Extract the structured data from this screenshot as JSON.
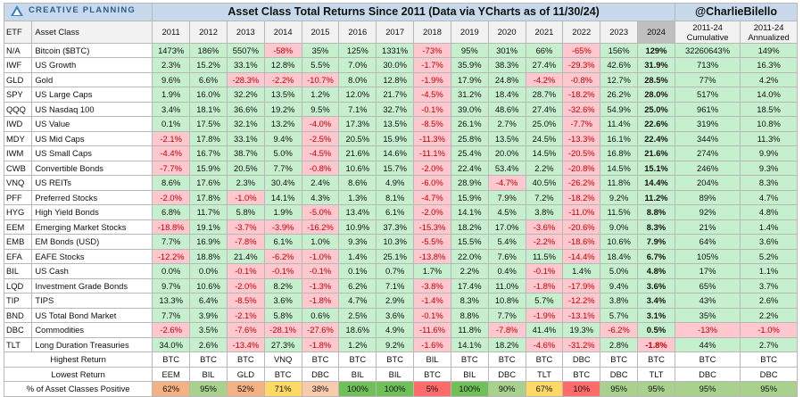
{
  "brand": {
    "logo_text": "CREATIVE PLANNING",
    "handle": "@CharlieBilello"
  },
  "title": "Asset Class Total Returns Since 2011 (Data via YCharts as of 11/30/24)",
  "colors": {
    "positive": "#c6efce",
    "negative": "#ffc7ce",
    "header": "#c9d9ec",
    "neg_text": "#c00000"
  },
  "chart_data": {
    "type": "table",
    "title": "Asset Class Total Returns Since 2011 (Data via YCharts as of 11/30/24)",
    "columns": [
      "ETF",
      "Asset Class",
      "2011",
      "2012",
      "2013",
      "2014",
      "2015",
      "2016",
      "2017",
      "2018",
      "2019",
      "2020",
      "2021",
      "2022",
      "2023",
      "2024",
      "2011-24 Cumulative",
      "2011-24 Annualized"
    ],
    "rows": [
      {
        "etf": "N/A",
        "name": "Bitcoin ($BTC)",
        "values": [
          "1473%",
          "186%",
          "5507%",
          "-58%",
          "35%",
          "125%",
          "1331%",
          "-73%",
          "95%",
          "301%",
          "66%",
          "-65%",
          "156%",
          "129%",
          "32260643%",
          "149%"
        ]
      },
      {
        "etf": "IWF",
        "name": "US Growth",
        "values": [
          "2.3%",
          "15.2%",
          "33.1%",
          "12.8%",
          "5.5%",
          "7.0%",
          "30.0%",
          "-1.7%",
          "35.9%",
          "38.3%",
          "27.4%",
          "-29.3%",
          "42.6%",
          "31.9%",
          "713%",
          "16.3%"
        ]
      },
      {
        "etf": "GLD",
        "name": "Gold",
        "values": [
          "9.6%",
          "6.6%",
          "-28.3%",
          "-2.2%",
          "-10.7%",
          "8.0%",
          "12.8%",
          "-1.9%",
          "17.9%",
          "24.8%",
          "-4.2%",
          "-0.8%",
          "12.7%",
          "28.5%",
          "77%",
          "4.2%"
        ]
      },
      {
        "etf": "SPY",
        "name": "US Large Caps",
        "values": [
          "1.9%",
          "16.0%",
          "32.2%",
          "13.5%",
          "1.2%",
          "12.0%",
          "21.7%",
          "-4.5%",
          "31.2%",
          "18.4%",
          "28.7%",
          "-18.2%",
          "26.2%",
          "28.0%",
          "517%",
          "14.0%"
        ]
      },
      {
        "etf": "QQQ",
        "name": "US Nasdaq 100",
        "values": [
          "3.4%",
          "18.1%",
          "36.6%",
          "19.2%",
          "9.5%",
          "7.1%",
          "32.7%",
          "-0.1%",
          "39.0%",
          "48.6%",
          "27.4%",
          "-32.6%",
          "54.9%",
          "25.0%",
          "961%",
          "18.5%"
        ]
      },
      {
        "etf": "IWD",
        "name": "US Value",
        "values": [
          "0.1%",
          "17.5%",
          "32.1%",
          "13.2%",
          "-4.0%",
          "17.3%",
          "13.5%",
          "-8.5%",
          "26.1%",
          "2.7%",
          "25.0%",
          "-7.7%",
          "11.4%",
          "22.6%",
          "319%",
          "10.8%"
        ]
      },
      {
        "etf": "MDY",
        "name": "US Mid Caps",
        "values": [
          "-2.1%",
          "17.8%",
          "33.1%",
          "9.4%",
          "-2.5%",
          "20.5%",
          "15.9%",
          "-11.3%",
          "25.8%",
          "13.5%",
          "24.5%",
          "-13.3%",
          "16.1%",
          "22.4%",
          "344%",
          "11.3%"
        ]
      },
      {
        "etf": "IWM",
        "name": "US Small Caps",
        "values": [
          "-4.4%",
          "16.7%",
          "38.7%",
          "5.0%",
          "-4.5%",
          "21.6%",
          "14.6%",
          "-11.1%",
          "25.4%",
          "20.0%",
          "14.5%",
          "-20.5%",
          "16.8%",
          "21.6%",
          "274%",
          "9.9%"
        ]
      },
      {
        "etf": "CWB",
        "name": "Convertible Bonds",
        "values": [
          "-7.7%",
          "15.9%",
          "20.5%",
          "7.7%",
          "-0.8%",
          "10.6%",
          "15.7%",
          "-2.0%",
          "22.4%",
          "53.4%",
          "2.2%",
          "-20.8%",
          "14.5%",
          "15.1%",
          "246%",
          "9.3%"
        ]
      },
      {
        "etf": "VNQ",
        "name": "US REITs",
        "values": [
          "8.6%",
          "17.6%",
          "2.3%",
          "30.4%",
          "2.4%",
          "8.6%",
          "4.9%",
          "-6.0%",
          "28.9%",
          "-4.7%",
          "40.5%",
          "-26.2%",
          "11.8%",
          "14.4%",
          "204%",
          "8.3%"
        ]
      },
      {
        "etf": "PFF",
        "name": "Preferred Stocks",
        "values": [
          "-2.0%",
          "17.8%",
          "-1.0%",
          "14.1%",
          "4.3%",
          "1.3%",
          "8.1%",
          "-4.7%",
          "15.9%",
          "7.9%",
          "7.2%",
          "-18.2%",
          "9.2%",
          "11.2%",
          "89%",
          "4.7%"
        ]
      },
      {
        "etf": "HYG",
        "name": "High Yield Bonds",
        "values": [
          "6.8%",
          "11.7%",
          "5.8%",
          "1.9%",
          "-5.0%",
          "13.4%",
          "6.1%",
          "-2.0%",
          "14.1%",
          "4.5%",
          "3.8%",
          "-11.0%",
          "11.5%",
          "8.8%",
          "92%",
          "4.8%"
        ]
      },
      {
        "etf": "EEM",
        "name": "Emerging Market Stocks",
        "values": [
          "-18.8%",
          "19.1%",
          "-3.7%",
          "-3.9%",
          "-16.2%",
          "10.9%",
          "37.3%",
          "-15.3%",
          "18.2%",
          "17.0%",
          "-3.6%",
          "-20.6%",
          "9.0%",
          "8.3%",
          "21%",
          "1.4%"
        ]
      },
      {
        "etf": "EMB",
        "name": "EM Bonds (USD)",
        "values": [
          "7.7%",
          "16.9%",
          "-7.8%",
          "6.1%",
          "1.0%",
          "9.3%",
          "10.3%",
          "-5.5%",
          "15.5%",
          "5.4%",
          "-2.2%",
          "-18.6%",
          "10.6%",
          "7.9%",
          "64%",
          "3.6%"
        ]
      },
      {
        "etf": "EFA",
        "name": "EAFE Stocks",
        "values": [
          "-12.2%",
          "18.8%",
          "21.4%",
          "-6.2%",
          "-1.0%",
          "1.4%",
          "25.1%",
          "-13.8%",
          "22.0%",
          "7.6%",
          "11.5%",
          "-14.4%",
          "18.4%",
          "6.7%",
          "105%",
          "5.2%"
        ]
      },
      {
        "etf": "BIL",
        "name": "US Cash",
        "values": [
          "0.0%",
          "0.0%",
          "-0.1%",
          "-0.1%",
          "-0.1%",
          "0.1%",
          "0.7%",
          "1.7%",
          "2.2%",
          "0.4%",
          "-0.1%",
          "1.4%",
          "5.0%",
          "4.8%",
          "17%",
          "1.1%"
        ]
      },
      {
        "etf": "LQD",
        "name": "Investment Grade Bonds",
        "values": [
          "9.7%",
          "10.6%",
          "-2.0%",
          "8.2%",
          "-1.3%",
          "6.2%",
          "7.1%",
          "-3.8%",
          "17.4%",
          "11.0%",
          "-1.8%",
          "-17.9%",
          "9.4%",
          "3.6%",
          "65%",
          "3.7%"
        ]
      },
      {
        "etf": "TIP",
        "name": "TIPS",
        "values": [
          "13.3%",
          "6.4%",
          "-8.5%",
          "3.6%",
          "-1.8%",
          "4.7%",
          "2.9%",
          "-1.4%",
          "8.3%",
          "10.8%",
          "5.7%",
          "-12.2%",
          "3.8%",
          "3.4%",
          "43%",
          "2.6%"
        ]
      },
      {
        "etf": "BND",
        "name": "US Total Bond Market",
        "values": [
          "7.7%",
          "3.9%",
          "-2.1%",
          "5.8%",
          "0.6%",
          "2.5%",
          "3.6%",
          "-0.1%",
          "8.8%",
          "7.7%",
          "-1.9%",
          "-13.1%",
          "5.7%",
          "3.1%",
          "35%",
          "2.2%"
        ]
      },
      {
        "etf": "DBC",
        "name": "Commodities",
        "values": [
          "-2.6%",
          "3.5%",
          "-7.6%",
          "-28.1%",
          "-27.6%",
          "18.6%",
          "4.9%",
          "-11.6%",
          "11.8%",
          "-7.8%",
          "41.4%",
          "19.3%",
          "-6.2%",
          "0.5%",
          "-13%",
          "-1.0%"
        ]
      },
      {
        "etf": "TLT",
        "name": "Long Duration Treasuries",
        "values": [
          "34.0%",
          "2.6%",
          "-13.4%",
          "27.3%",
          "-1.8%",
          "1.2%",
          "9.2%",
          "-1.6%",
          "14.1%",
          "18.2%",
          "-4.6%",
          "-31.2%",
          "2.8%",
          "-1.8%",
          "44%",
          "2.7%"
        ]
      }
    ],
    "summary": [
      {
        "label": "Highest Return",
        "values": [
          "BTC",
          "BTC",
          "BTC",
          "VNQ",
          "BTC",
          "BTC",
          "BTC",
          "BIL",
          "BTC",
          "BTC",
          "BTC",
          "DBC",
          "BTC",
          "BTC",
          "BTC",
          "BTC"
        ]
      },
      {
        "label": "Lowest Return",
        "values": [
          "EEM",
          "BIL",
          "GLD",
          "BTC",
          "DBC",
          "BIL",
          "BIL",
          "BTC",
          "BIL",
          "DBC",
          "TLT",
          "BTC",
          "DBC",
          "TLT",
          "DBC",
          "DBC"
        ]
      },
      {
        "label": "% of Asset Classes Positive",
        "values": [
          "62%",
          "95%",
          "52%",
          "71%",
          "38%",
          "100%",
          "100%",
          "5%",
          "100%",
          "90%",
          "67%",
          "10%",
          "95%",
          "95%",
          "95%",
          "95%"
        ],
        "colors": [
          "#f4b183",
          "#a9d18e",
          "#f4b183",
          "#ffd966",
          "#f8cbad",
          "#70c05a",
          "#70c05a",
          "#ff6b6b",
          "#70c05a",
          "#a9d18e",
          "#ffd966",
          "#ff6b6b",
          "#a9d18e",
          "#a9d18e",
          "#a9d18e",
          "#a9d18e"
        ]
      }
    ]
  }
}
